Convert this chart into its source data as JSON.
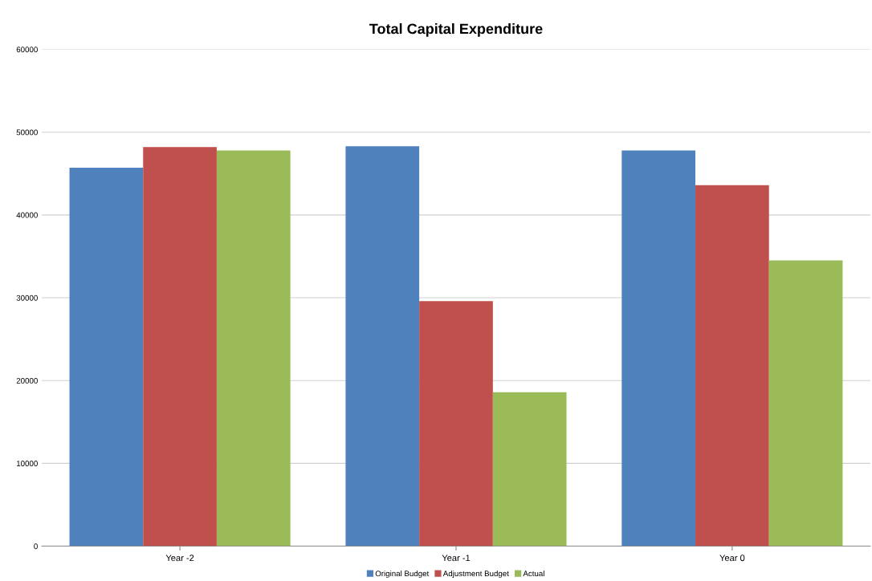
{
  "chart_data": {
    "type": "bar",
    "title": "Total Capital Expenditure",
    "categories": [
      "Year -2",
      "Year -1",
      "Year 0"
    ],
    "series": [
      {
        "name": "Original Budget",
        "color": "#4f81bd",
        "values": [
          45700,
          48300,
          47800
        ]
      },
      {
        "name": "Adjustment Budget",
        "color": "#c0504d",
        "values": [
          48200,
          29600,
          43600
        ]
      },
      {
        "name": "Actual",
        "color": "#9bbb59",
        "values": [
          47800,
          18600,
          34500
        ]
      }
    ],
    "ylim": [
      0,
      60000
    ],
    "yticks": [
      0,
      10000,
      20000,
      30000,
      40000,
      50000,
      60000
    ],
    "grid": "y",
    "legend": "bottom"
  }
}
